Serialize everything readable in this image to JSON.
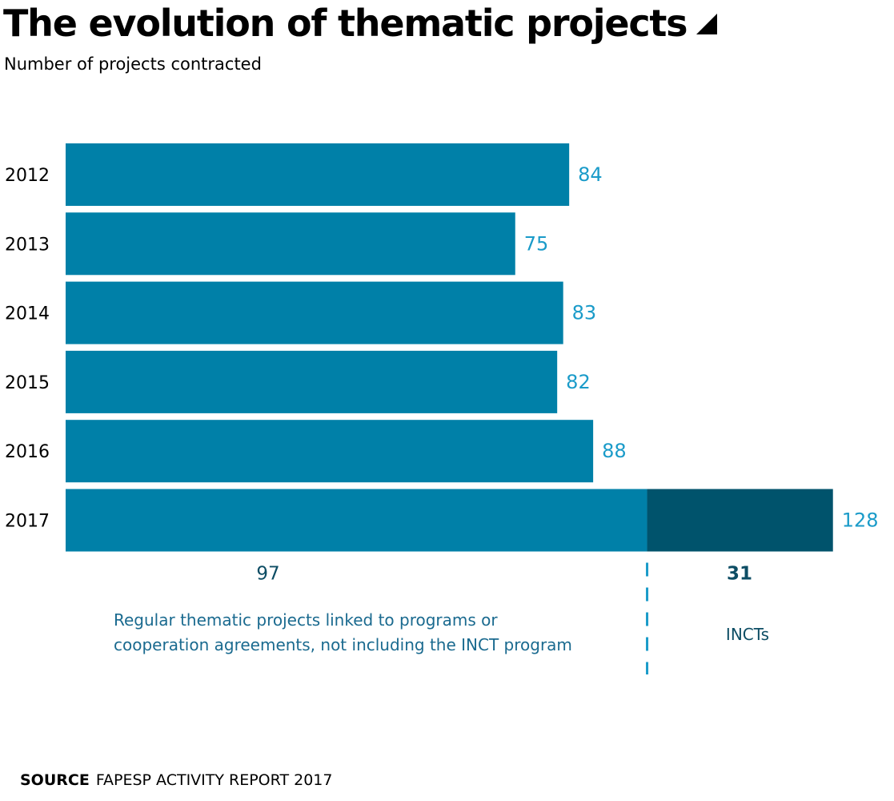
{
  "title": "The evolution of thematic projects",
  "subtitle": "Number of projects contracted",
  "colors": {
    "bar": "#0080a8",
    "bar_incts": "#00536c",
    "value_label": "#1a9bc9",
    "annotation_text": "#1a6a8f",
    "breakdown_value": "#0d4d64",
    "divider": "#1a9bc9"
  },
  "chart_data": {
    "type": "bar",
    "orientation": "horizontal",
    "stacked": true,
    "categories": [
      "2012",
      "2013",
      "2014",
      "2015",
      "2016",
      "2017"
    ],
    "series": [
      {
        "name": "Regular thematic projects linked to programs or cooperation agreements, not including the INCT program",
        "values": [
          84,
          75,
          83,
          82,
          88,
          97
        ]
      },
      {
        "name": "INCTs",
        "values": [
          0,
          0,
          0,
          0,
          0,
          31
        ]
      }
    ],
    "totals": [
      84,
      75,
      83,
      82,
      88,
      128
    ],
    "xlim": [
      0,
      128
    ],
    "breakdown": {
      "regular_value": "97",
      "incts_value": "31",
      "regular_label_line1": "Regular thematic projects linked to programs or",
      "regular_label_line2": "cooperation agreements, not including the INCT program",
      "incts_label": "INCTs"
    }
  },
  "source": {
    "label": "SOURCE",
    "text": "FAPESP ACTIVITY REPORT 2017"
  }
}
